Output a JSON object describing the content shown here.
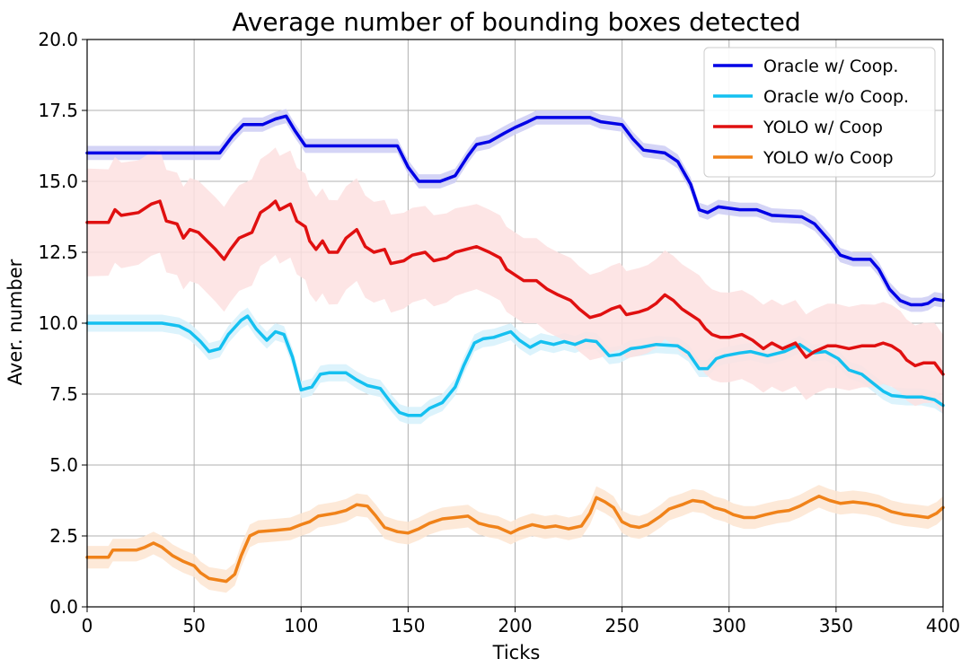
{
  "chart_data": {
    "type": "line",
    "title": "Average number of bounding boxes detected",
    "xlabel": "Ticks",
    "ylabel": "Aver. number",
    "xlim": [
      0,
      400
    ],
    "ylim": [
      0,
      20
    ],
    "xticks": [
      0,
      50,
      100,
      150,
      200,
      250,
      300,
      350,
      400
    ],
    "yticks": [
      "0.0",
      "2.5",
      "5.0",
      "7.5",
      "10.0",
      "12.5",
      "15.0",
      "17.5",
      "20.0"
    ],
    "grid": true,
    "legend_position": "top-right",
    "series": [
      {
        "name": "Oracle w/ Coop.",
        "color": "#0000e6",
        "band_color": "#ccccf5",
        "points": [
          [
            0,
            16.0
          ],
          [
            62,
            16.0
          ],
          [
            68,
            16.6
          ],
          [
            73,
            17.0
          ],
          [
            82,
            17.0
          ],
          [
            88,
            17.2
          ],
          [
            93,
            17.3
          ],
          [
            97,
            16.8
          ],
          [
            102,
            16.25
          ],
          [
            145,
            16.25
          ],
          [
            150,
            15.5
          ],
          [
            155,
            15.0
          ],
          [
            165,
            15.0
          ],
          [
            172,
            15.2
          ],
          [
            178,
            15.9
          ],
          [
            182,
            16.3
          ],
          [
            188,
            16.4
          ],
          [
            195,
            16.7
          ],
          [
            200,
            16.9
          ],
          [
            206,
            17.1
          ],
          [
            210,
            17.25
          ],
          [
            235,
            17.25
          ],
          [
            240,
            17.1
          ],
          [
            250,
            17.0
          ],
          [
            255,
            16.5
          ],
          [
            260,
            16.1
          ],
          [
            270,
            16.0
          ],
          [
            276,
            15.7
          ],
          [
            282,
            14.9
          ],
          [
            286,
            14.0
          ],
          [
            290,
            13.9
          ],
          [
            295,
            14.1
          ],
          [
            305,
            14.0
          ],
          [
            313,
            14.0
          ],
          [
            320,
            13.8
          ],
          [
            334,
            13.75
          ],
          [
            340,
            13.5
          ],
          [
            347,
            12.9
          ],
          [
            352,
            12.4
          ],
          [
            358,
            12.25
          ],
          [
            366,
            12.25
          ],
          [
            370,
            11.9
          ],
          [
            375,
            11.2
          ],
          [
            380,
            10.8
          ],
          [
            385,
            10.65
          ],
          [
            390,
            10.65
          ],
          [
            393,
            10.7
          ],
          [
            396,
            10.85
          ],
          [
            400,
            10.8
          ]
        ],
        "band": [
          [
            0,
            0.25
          ],
          [
            400,
            0.25
          ]
        ]
      },
      {
        "name": "Oracle w/o Coop.",
        "color": "#14c0f0",
        "band_color": "#d6f1fc",
        "points": [
          [
            0,
            10.0
          ],
          [
            35,
            10.0
          ],
          [
            43,
            9.9
          ],
          [
            48,
            9.7
          ],
          [
            53,
            9.35
          ],
          [
            57,
            9.0
          ],
          [
            62,
            9.1
          ],
          [
            66,
            9.6
          ],
          [
            72,
            10.1
          ],
          [
            75,
            10.25
          ],
          [
            79,
            9.8
          ],
          [
            84,
            9.4
          ],
          [
            88,
            9.7
          ],
          [
            92,
            9.6
          ],
          [
            96,
            8.8
          ],
          [
            100,
            7.65
          ],
          [
            105,
            7.75
          ],
          [
            109,
            8.2
          ],
          [
            113,
            8.25
          ],
          [
            121,
            8.25
          ],
          [
            126,
            8.0
          ],
          [
            131,
            7.8
          ],
          [
            137,
            7.7
          ],
          [
            142,
            7.2
          ],
          [
            146,
            6.85
          ],
          [
            150,
            6.75
          ],
          [
            156,
            6.75
          ],
          [
            160,
            7.0
          ],
          [
            166,
            7.2
          ],
          [
            172,
            7.75
          ],
          [
            176,
            8.5
          ],
          [
            181,
            9.3
          ],
          [
            185,
            9.45
          ],
          [
            190,
            9.5
          ],
          [
            194,
            9.6
          ],
          [
            198,
            9.7
          ],
          [
            202,
            9.4
          ],
          [
            207,
            9.15
          ],
          [
            212,
            9.35
          ],
          [
            218,
            9.25
          ],
          [
            223,
            9.35
          ],
          [
            228,
            9.25
          ],
          [
            233,
            9.4
          ],
          [
            238,
            9.35
          ],
          [
            244,
            8.85
          ],
          [
            249,
            8.9
          ],
          [
            254,
            9.1
          ],
          [
            259,
            9.15
          ],
          [
            266,
            9.25
          ],
          [
            276,
            9.2
          ],
          [
            281,
            8.95
          ],
          [
            286,
            8.4
          ],
          [
            290,
            8.4
          ],
          [
            294,
            8.75
          ],
          [
            298,
            8.85
          ],
          [
            305,
            8.95
          ],
          [
            310,
            9.0
          ],
          [
            318,
            8.85
          ],
          [
            326,
            9.0
          ],
          [
            333,
            9.25
          ],
          [
            339,
            8.95
          ],
          [
            345,
            9.0
          ],
          [
            351,
            8.75
          ],
          [
            356,
            8.35
          ],
          [
            362,
            8.2
          ],
          [
            367,
            7.9
          ],
          [
            372,
            7.6
          ],
          [
            376,
            7.45
          ],
          [
            383,
            7.4
          ],
          [
            390,
            7.4
          ],
          [
            396,
            7.3
          ],
          [
            400,
            7.1
          ]
        ],
        "band": [
          [
            0,
            0.3
          ],
          [
            400,
            0.3
          ]
        ]
      },
      {
        "name": "YOLO w/ Coop",
        "color": "#e01010",
        "band_color": "#fde1e1",
        "points": [
          [
            0,
            13.55
          ],
          [
            10,
            13.55
          ],
          [
            13,
            14.0
          ],
          [
            16,
            13.8
          ],
          [
            24,
            13.9
          ],
          [
            30,
            14.2
          ],
          [
            34,
            14.3
          ],
          [
            37,
            13.6
          ],
          [
            42,
            13.5
          ],
          [
            45,
            13.0
          ],
          [
            48,
            13.3
          ],
          [
            52,
            13.2
          ],
          [
            56,
            12.9
          ],
          [
            60,
            12.6
          ],
          [
            64,
            12.25
          ],
          [
            67,
            12.6
          ],
          [
            71,
            13.0
          ],
          [
            77,
            13.2
          ],
          [
            81,
            13.9
          ],
          [
            85,
            14.1
          ],
          [
            88,
            14.3
          ],
          [
            90,
            14.0
          ],
          [
            95,
            14.2
          ],
          [
            98,
            13.6
          ],
          [
            102,
            13.4
          ],
          [
            104,
            12.9
          ],
          [
            107,
            12.6
          ],
          [
            110,
            12.9
          ],
          [
            113,
            12.5
          ],
          [
            117,
            12.5
          ],
          [
            121,
            13.0
          ],
          [
            126,
            13.3
          ],
          [
            130,
            12.7
          ],
          [
            134,
            12.5
          ],
          [
            139,
            12.6
          ],
          [
            142,
            12.1
          ],
          [
            148,
            12.2
          ],
          [
            152,
            12.4
          ],
          [
            158,
            12.5
          ],
          [
            162,
            12.2
          ],
          [
            168,
            12.3
          ],
          [
            172,
            12.5
          ],
          [
            177,
            12.6
          ],
          [
            182,
            12.7
          ],
          [
            188,
            12.5
          ],
          [
            193,
            12.3
          ],
          [
            196,
            11.9
          ],
          [
            200,
            11.7
          ],
          [
            204,
            11.5
          ],
          [
            210,
            11.5
          ],
          [
            215,
            11.2
          ],
          [
            220,
            11.0
          ],
          [
            226,
            10.8
          ],
          [
            230,
            10.5
          ],
          [
            235,
            10.2
          ],
          [
            240,
            10.3
          ],
          [
            245,
            10.5
          ],
          [
            249,
            10.6
          ],
          [
            252,
            10.3
          ],
          [
            258,
            10.4
          ],
          [
            262,
            10.5
          ],
          [
            266,
            10.7
          ],
          [
            270,
            11.0
          ],
          [
            274,
            10.8
          ],
          [
            278,
            10.5
          ],
          [
            282,
            10.3
          ],
          [
            286,
            10.1
          ],
          [
            289,
            9.8
          ],
          [
            292,
            9.6
          ],
          [
            296,
            9.5
          ],
          [
            300,
            9.5
          ],
          [
            306,
            9.6
          ],
          [
            311,
            9.4
          ],
          [
            316,
            9.1
          ],
          [
            320,
            9.3
          ],
          [
            325,
            9.1
          ],
          [
            331,
            9.3
          ],
          [
            336,
            8.8
          ],
          [
            340,
            9.0
          ],
          [
            346,
            9.2
          ],
          [
            350,
            9.2
          ],
          [
            356,
            9.1
          ],
          [
            362,
            9.2
          ],
          [
            368,
            9.2
          ],
          [
            372,
            9.3
          ],
          [
            376,
            9.2
          ],
          [
            380,
            9.0
          ],
          [
            383,
            8.7
          ],
          [
            387,
            8.5
          ],
          [
            391,
            8.6
          ],
          [
            396,
            8.6
          ],
          [
            400,
            8.2
          ]
        ],
        "band": [
          [
            0,
            1.9
          ],
          [
            40,
            1.8
          ],
          [
            90,
            1.9
          ],
          [
            130,
            1.8
          ],
          [
            180,
            1.5
          ],
          [
            230,
            1.5
          ],
          [
            290,
            1.6
          ],
          [
            340,
            1.5
          ],
          [
            400,
            1.4
          ]
        ]
      },
      {
        "name": "YOLO w/o Coop",
        "color": "#f08219",
        "band_color": "#fde5d1",
        "points": [
          [
            0,
            1.75
          ],
          [
            10,
            1.75
          ],
          [
            12,
            2.0
          ],
          [
            23,
            2.0
          ],
          [
            27,
            2.1
          ],
          [
            31,
            2.25
          ],
          [
            35,
            2.1
          ],
          [
            40,
            1.8
          ],
          [
            45,
            1.6
          ],
          [
            50,
            1.45
          ],
          [
            53,
            1.2
          ],
          [
            57,
            1.0
          ],
          [
            61,
            0.95
          ],
          [
            65,
            0.9
          ],
          [
            69,
            1.15
          ],
          [
            72,
            1.8
          ],
          [
            76,
            2.5
          ],
          [
            80,
            2.65
          ],
          [
            88,
            2.7
          ],
          [
            95,
            2.75
          ],
          [
            100,
            2.9
          ],
          [
            104,
            3.0
          ],
          [
            108,
            3.2
          ],
          [
            116,
            3.3
          ],
          [
            121,
            3.4
          ],
          [
            126,
            3.6
          ],
          [
            131,
            3.55
          ],
          [
            135,
            3.2
          ],
          [
            139,
            2.8
          ],
          [
            145,
            2.65
          ],
          [
            150,
            2.6
          ],
          [
            155,
            2.75
          ],
          [
            160,
            2.95
          ],
          [
            166,
            3.1
          ],
          [
            172,
            3.15
          ],
          [
            178,
            3.2
          ],
          [
            183,
            2.95
          ],
          [
            188,
            2.85
          ],
          [
            192,
            2.8
          ],
          [
            198,
            2.6
          ],
          [
            202,
            2.75
          ],
          [
            208,
            2.9
          ],
          [
            214,
            2.8
          ],
          [
            219,
            2.85
          ],
          [
            225,
            2.75
          ],
          [
            231,
            2.85
          ],
          [
            235,
            3.3
          ],
          [
            238,
            3.85
          ],
          [
            242,
            3.7
          ],
          [
            246,
            3.5
          ],
          [
            250,
            3.0
          ],
          [
            254,
            2.85
          ],
          [
            258,
            2.8
          ],
          [
            262,
            2.9
          ],
          [
            268,
            3.2
          ],
          [
            272,
            3.45
          ],
          [
            278,
            3.6
          ],
          [
            283,
            3.75
          ],
          [
            288,
            3.7
          ],
          [
            293,
            3.5
          ],
          [
            298,
            3.4
          ],
          [
            302,
            3.25
          ],
          [
            307,
            3.15
          ],
          [
            312,
            3.15
          ],
          [
            317,
            3.25
          ],
          [
            323,
            3.35
          ],
          [
            328,
            3.4
          ],
          [
            333,
            3.55
          ],
          [
            338,
            3.75
          ],
          [
            342,
            3.9
          ],
          [
            347,
            3.75
          ],
          [
            352,
            3.65
          ],
          [
            358,
            3.7
          ],
          [
            364,
            3.65
          ],
          [
            370,
            3.55
          ],
          [
            376,
            3.35
          ],
          [
            382,
            3.25
          ],
          [
            388,
            3.2
          ],
          [
            393,
            3.15
          ],
          [
            397,
            3.3
          ],
          [
            400,
            3.5
          ]
        ],
        "band": [
          [
            0,
            0.4
          ],
          [
            400,
            0.4
          ]
        ]
      }
    ]
  }
}
